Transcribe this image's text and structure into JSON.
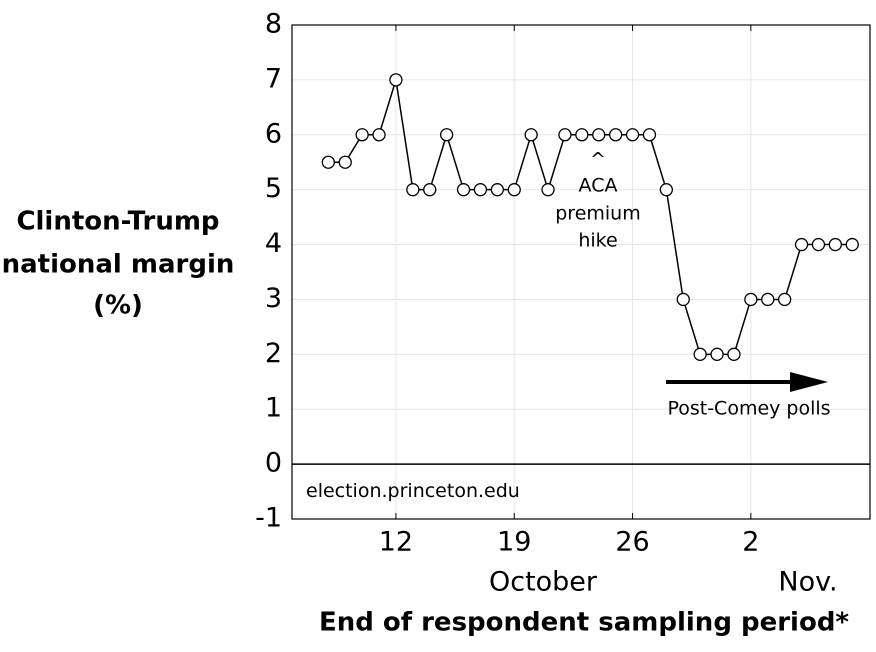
{
  "chart_data": {
    "type": "line",
    "ylabel_lines": [
      "Clinton-Trump",
      "national margin",
      "(%)"
    ],
    "xlabel": "End of respondent sampling period*",
    "month_labels": [
      "October",
      "Nov."
    ],
    "watermark": "election.princeton.edu",
    "annotation_aca": [
      "^",
      "ACA",
      "premium",
      "hike"
    ],
    "annotation_comey": "Post-Comey polls",
    "x": [
      8,
      9,
      10,
      11,
      12,
      13,
      14,
      15,
      16,
      17,
      18,
      19,
      20,
      21,
      22,
      23,
      24,
      25,
      26,
      27,
      28,
      29,
      30,
      31,
      32,
      33,
      34,
      35,
      36,
      37,
      38,
      39
    ],
    "series": [
      {
        "color": "#000000",
        "values": [
          5.5,
          5.5,
          6,
          6,
          7,
          5,
          5,
          6,
          5,
          5,
          5,
          5,
          6,
          5,
          6,
          6,
          6,
          6,
          6,
          6,
          5,
          3,
          2,
          2,
          2,
          3,
          3,
          3,
          4,
          4,
          4,
          4
        ]
      }
    ],
    "xlim": [
      5.85,
      40.05
    ],
    "xticks": [
      12,
      19,
      26,
      {
        "value": 33,
        "label": "2"
      }
    ],
    "ylim": [
      -1,
      8
    ],
    "yticks": [
      -1,
      0,
      1,
      2,
      3,
      4,
      5,
      6,
      7,
      8
    ],
    "grid": true
  }
}
